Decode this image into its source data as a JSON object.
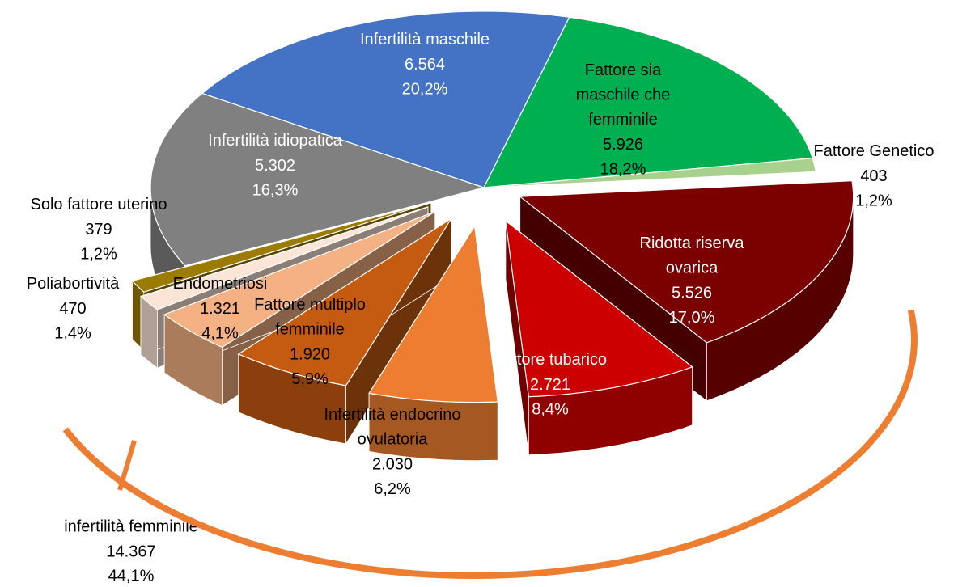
{
  "chart_data": {
    "type": "pie3d",
    "categories": [
      "Infertilità maschile",
      "Fattore sia maschile che femminile",
      "Fattore Genetico",
      "Ridotta riserva ovarica",
      "Fattore tubarico",
      "Infertilità endocrino ovulatoria",
      "Fattore multiplo femminile",
      "Endometriosi",
      "Poliabortività",
      "Solo fattore uterino",
      "Infertilità idiopatica"
    ],
    "values": [
      6564,
      5926,
      403,
      5526,
      2721,
      2030,
      1920,
      1321,
      470,
      379,
      5302
    ],
    "value_labels": [
      "6.564",
      "5.926",
      "403",
      "5.526",
      "2.721",
      "2.030",
      "1.920",
      "1.321",
      "470",
      "379",
      "5.302"
    ],
    "percentage_labels": [
      "20,2%",
      "18,2%",
      "1,2%",
      "17,0%",
      "8,4%",
      "6,2%",
      "5,9%",
      "4,1%",
      "1,4%",
      "1,2%",
      "16,3%"
    ],
    "colors": [
      "#4472c4",
      "#00b050",
      "#a9d18e",
      "#7b0000",
      "#cc0000",
      "#ed7d31",
      "#c55a11",
      "#f4b183",
      "#fbe5d6",
      "#9c7c00",
      "#808080"
    ],
    "group": {
      "label": "infertilità femminile",
      "value": 14367,
      "value_label": "14.367",
      "percentage_label": "44,1%",
      "color": "#ed7d31"
    }
  }
}
